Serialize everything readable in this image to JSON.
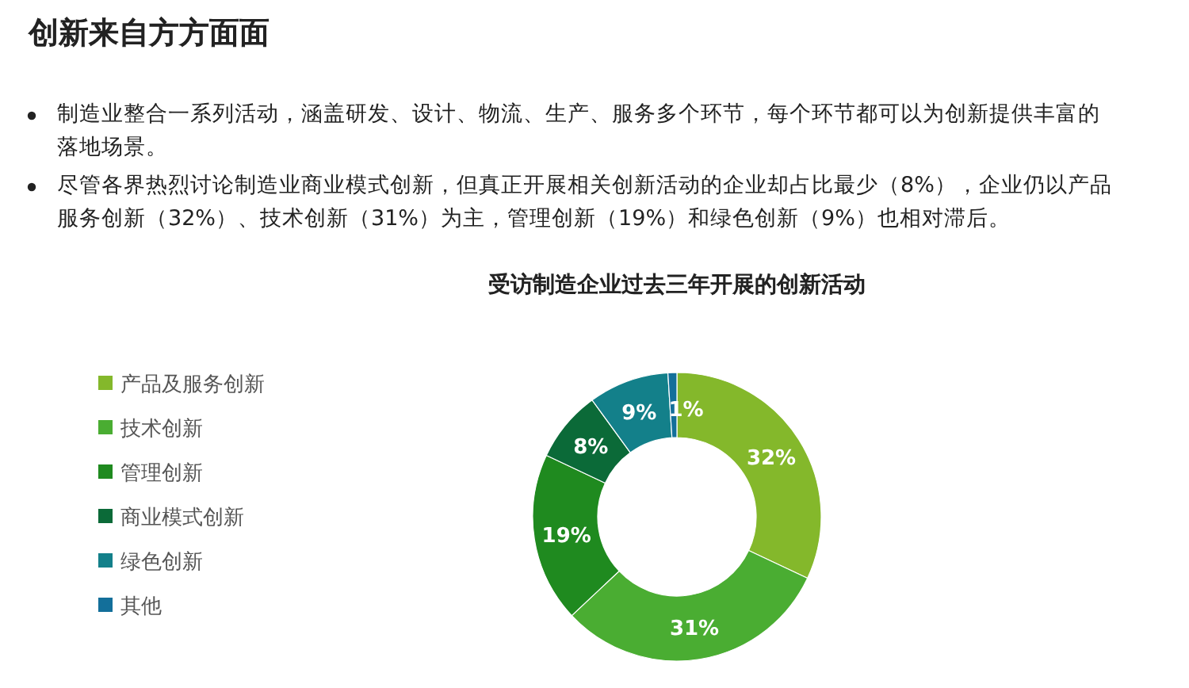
{
  "chart_data": {
    "type": "donut",
    "title": "受访制造企业过去三年开展的创新活动",
    "annotations": [
      "创新来自方方面面",
      "制造业整合一系列活动，涵盖研发、设计、物流、生产、服务多个环节，每个环节都可以为创新提供丰富的落地场景。",
      "尽管各界热烈讨论制造业商业模式创新，但真正开展相关创新活动的企业却占比最少（8%），企业仍以产品服务创新（32%）、技术创新（31%）为主，管理创新（19%）和绿色创新（9%）也相对滞后。"
    ],
    "categories": [
      "产品及服务创新",
      "技术创新",
      "管理创新",
      "商业模式创新",
      "绿色创新",
      "其他"
    ],
    "values": [
      32,
      31,
      19,
      8,
      9,
      1
    ],
    "value_labels": [
      "32%",
      "31%",
      "19%",
      "8%",
      "9%",
      "1%"
    ],
    "colors": [
      "#84b82b",
      "#4aad32",
      "#1f8a1f",
      "#0b6a38",
      "#13808a",
      "#136f9a"
    ],
    "legend": "left"
  }
}
